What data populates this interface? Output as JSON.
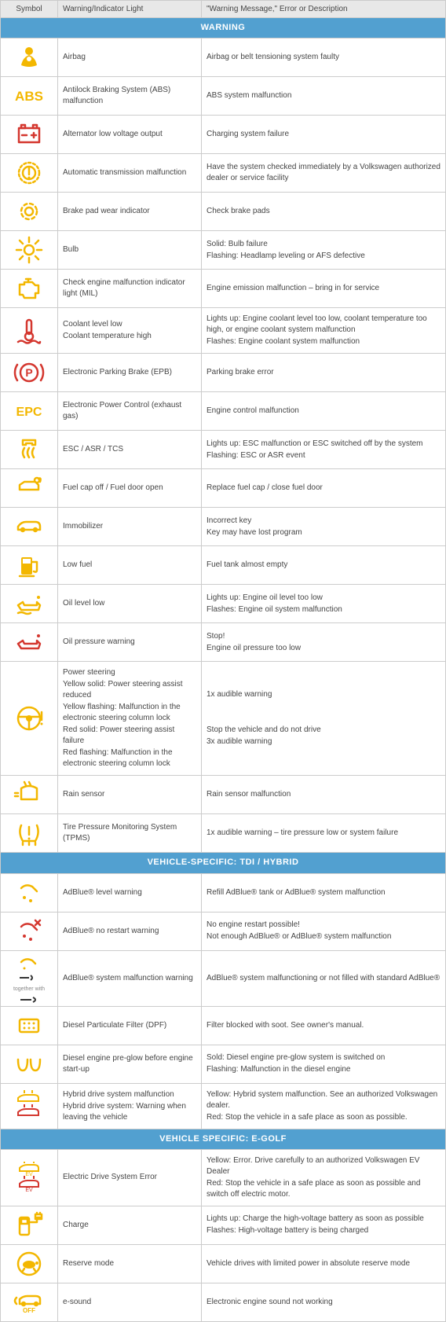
{
  "colors": {
    "yellow": "#f3b700",
    "red": "#d4372f",
    "headerBg": "#e8e8e8",
    "sectionBg": "#52a0d0",
    "border": "#cccccc",
    "text": "#444444"
  },
  "columns": [
    "Symbol",
    "Warning/Indicator Light",
    "\"Warning Message,\" Error or Description"
  ],
  "sections": [
    {
      "title": "WARNING",
      "rows": [
        {
          "icon": "airbag",
          "iconColor": "yellow",
          "light": "Airbag",
          "desc": "Airbag or belt tensioning system faulty"
        },
        {
          "icon": "abs",
          "iconColor": "yellow",
          "light": "Antilock Braking System (ABS) malfunction",
          "desc": "ABS system malfunction"
        },
        {
          "icon": "battery",
          "iconColor": "red",
          "light": "Alternator low voltage output",
          "desc": "Charging system failure"
        },
        {
          "icon": "gear-excl",
          "iconColor": "yellow",
          "light": "Automatic transmission malfunction",
          "desc": "Have the system checked immediately by a Volkswagen authorized dealer or service facility"
        },
        {
          "icon": "brake-pad",
          "iconColor": "yellow",
          "light": "Brake pad wear indicator",
          "desc": "Check brake pads"
        },
        {
          "icon": "bulb",
          "iconColor": "yellow",
          "light": "Bulb",
          "desc": [
            "Solid: Bulb failure",
            "Flashing: Headlamp leveling or AFS defective"
          ]
        },
        {
          "icon": "engine",
          "iconColor": "yellow",
          "light": "Check engine malfunction indicator light (MIL)",
          "desc": "Engine emission malfunction – bring in for service"
        },
        {
          "icon": "coolant",
          "iconColor": "red",
          "light": [
            "Coolant level low",
            "Coolant temperature high"
          ],
          "desc": [
            "Lights up: Engine coolant level too low, coolant temperature too high, or engine coolant system malfunction",
            "Flashes: Engine coolant system malfunction"
          ]
        },
        {
          "icon": "parking-brake",
          "iconColor": "red",
          "light": "Electronic Parking Brake (EPB)",
          "desc": "Parking brake error"
        },
        {
          "icon": "epc",
          "iconColor": "yellow",
          "light": "Electronic Power Control (exhaust gas)",
          "desc": "Engine control malfunction"
        },
        {
          "icon": "esc",
          "iconColor": "yellow",
          "light": "ESC / ASR / TCS",
          "desc": [
            "Lights up: ESC malfunction or ESC switched off by the system",
            "Flashing: ESC or ASR event"
          ]
        },
        {
          "icon": "fuel-cap",
          "iconColor": "yellow",
          "light": "Fuel cap off / Fuel door open",
          "desc": "Replace fuel cap / close fuel door"
        },
        {
          "icon": "car-key",
          "iconColor": "yellow",
          "light": "Immobilizer",
          "desc": [
            "Incorrect key",
            "Key may have lost program"
          ]
        },
        {
          "icon": "fuel",
          "iconColor": "yellow",
          "light": "Low fuel",
          "desc": "Fuel tank almost empty"
        },
        {
          "icon": "oil-level",
          "iconColor": "yellow",
          "light": "Oil level low",
          "desc": [
            "Lights up: Engine oil level too low",
            "Flashes: Engine oil system malfunction"
          ]
        },
        {
          "icon": "oil-pressure",
          "iconColor": "red",
          "light": "Oil pressure warning",
          "desc": [
            "Stop!",
            "Engine oil pressure too low"
          ]
        },
        {
          "icon": "steering",
          "iconColor": "yellow",
          "light": [
            "Power steering",
            "Yellow solid: Power steering assist reduced",
            "Yellow flashing: Malfunction in the electronic steering column lock",
            "Red solid: Power steering assist failure",
            "Red flashing: Malfunction in the electronic steering column lock"
          ],
          "desc": [
            "1x audible warning",
            "",
            "",
            "Stop the vehicle and do not drive",
            "3x audible warning"
          ]
        },
        {
          "icon": "rain",
          "iconColor": "yellow",
          "light": "Rain sensor",
          "desc": "Rain sensor malfunction"
        },
        {
          "icon": "tpms",
          "iconColor": "yellow",
          "light": "Tire Pressure Monitoring System (TPMS)",
          "desc": "1x audible warning – tire pressure low or system failure"
        }
      ]
    },
    {
      "title": "VEHICLE-SPECIFIC: TDI / HYBRID",
      "rows": [
        {
          "icon": "adblue",
          "iconColor": "yellow",
          "light": "AdBlue® level warning",
          "desc": "Refill AdBlue® tank or AdBlue® system malfunction"
        },
        {
          "icon": "adblue-restart",
          "iconColor": "red",
          "light": "AdBlue® no restart warning",
          "desc": [
            "No engine restart possible!",
            "Not enough AdBlue® or AdBlue® system malfunction"
          ]
        },
        {
          "icon": "adblue-wrench",
          "iconColor": "yellow",
          "light": "AdBlue® system malfunction warning",
          "desc": "AdBlue® system malfunctioning or not filled with standard AdBlue®",
          "sublabel": "together with"
        },
        {
          "icon": "dpf",
          "iconColor": "yellow",
          "light": "Diesel Particulate Filter (DPF)",
          "desc": "Filter blocked with soot. See owner's manual."
        },
        {
          "icon": "glow",
          "iconColor": "yellow",
          "light": "Diesel engine pre-glow before engine start-up",
          "desc": [
            "Sold: Diesel engine pre-glow system is switched on",
            "Flashing: Malfunction in the diesel engine"
          ]
        },
        {
          "icon": "hybrid",
          "iconColor": "dual",
          "light": [
            "Hybrid drive system malfunction",
            "Hybrid drive system: Warning when leaving the vehicle"
          ],
          "desc": [
            "Yellow: Hybrid system malfunction. See an authorized Volkswagen dealer.",
            "Red: Stop the vehicle in a safe place as soon as possible."
          ]
        }
      ]
    },
    {
      "title": "VEHICLE SPECIFIC: E-GOLF",
      "rows": [
        {
          "icon": "ev",
          "iconColor": "dual",
          "light": "Electric Drive System Error",
          "desc": [
            "Yellow: Error. Drive carefully to an authorized Volkswagen EV Dealer",
            "Red: Stop the vehicle in a safe place as soon as possible and switch off electric motor."
          ]
        },
        {
          "icon": "charge",
          "iconColor": "yellow",
          "light": "Charge",
          "desc": [
            "Lights up: Charge the high-voltage battery as soon as possible",
            "Flashes: High-voltage battery is being charged"
          ]
        },
        {
          "icon": "turtle",
          "iconColor": "yellow",
          "light": "Reserve mode",
          "desc": "Vehicle drives with limited power in absolute reserve mode"
        },
        {
          "icon": "esound",
          "iconColor": "yellow",
          "light": "e-sound",
          "desc": "Electronic engine sound not working"
        }
      ]
    }
  ]
}
